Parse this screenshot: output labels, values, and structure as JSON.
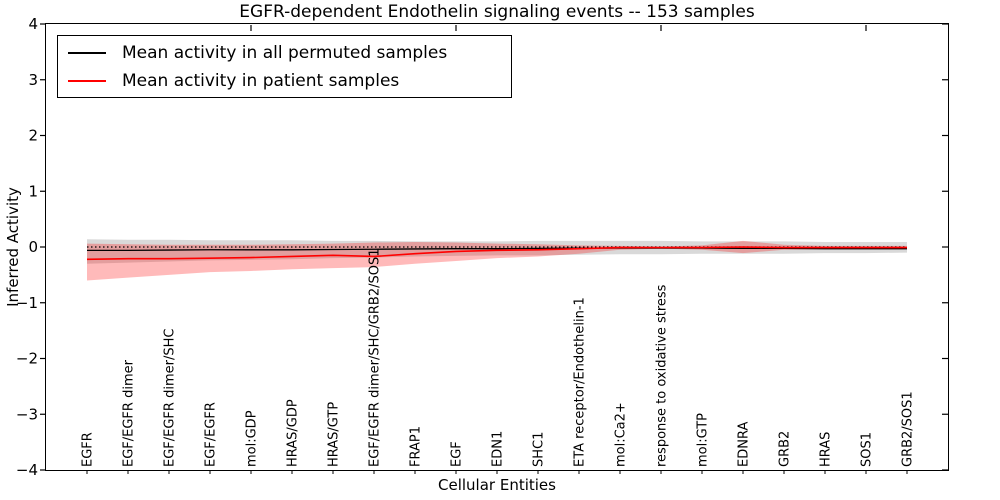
{
  "title": "EGFR-dependent Endothelin signaling events -- 153 samples",
  "axes": {
    "xlabel": "Cellular Entities",
    "ylabel": "Inferred Activity"
  },
  "legend": {
    "position": "upper left",
    "items": [
      {
        "label": "Mean activity in all permuted samples",
        "color": "#000000"
      },
      {
        "label": "Mean activity in patient samples",
        "color": "#ff0000"
      }
    ]
  },
  "colors": {
    "frame": "#000000",
    "permuted_line": "#000000",
    "patient_line": "#ff0000",
    "permuted_band": "rgba(0,0,0,0.15)",
    "patient_band": "rgba(255,0,0,0.27)",
    "zero_line": "#000000"
  },
  "chart_data": {
    "type": "line",
    "title": "EGFR-dependent Endothelin signaling events -- 153 samples",
    "xlabel": "Cellular Entities",
    "ylabel": "Inferred Activity",
    "xlim": [
      0,
      22
    ],
    "ylim": [
      -4,
      4
    ],
    "yticks": [
      4,
      3,
      2,
      1,
      0,
      -1,
      -2,
      -3,
      -4
    ],
    "xticks": [
      5,
      10,
      15,
      20
    ],
    "grid": false,
    "zero_line": {
      "y": 0,
      "style": "dotted"
    },
    "categories": [
      "EGFR",
      "EGF/EGFR dimer",
      "EGF/EGFR dimer/SHC",
      "EGF/EGFR",
      "mol:GDP",
      "HRAS/GDP",
      "HRAS/GTP",
      "EGF/EGFR dimer/SHC/GRB2/SOS1",
      "FRAP1",
      "EGF",
      "EDN1",
      "SHC1",
      "ETA receptor/Endothelin-1",
      "mol:Ca2+",
      "response to oxidative stress",
      "mol:GTP",
      "EDNRA",
      "GRB2",
      "HRAS",
      "SOS1",
      "GRB2/SOS1"
    ],
    "x": [
      1,
      2,
      3,
      4,
      5,
      6,
      7,
      8,
      9,
      10,
      11,
      12,
      13,
      14,
      15,
      16,
      17,
      18,
      19,
      20,
      21
    ],
    "series": [
      {
        "name": "Mean activity in all permuted samples",
        "color": "#000000",
        "line_width": 1.3,
        "values": [
          -0.06,
          -0.06,
          -0.055,
          -0.05,
          -0.05,
          -0.05,
          -0.045,
          -0.04,
          -0.035,
          -0.03,
          -0.03,
          -0.025,
          -0.02,
          -0.02,
          -0.02,
          -0.02,
          -0.025,
          -0.025,
          -0.03,
          -0.03,
          -0.03
        ],
        "band_upper": [
          0.14,
          0.13,
          0.13,
          0.12,
          0.12,
          0.12,
          0.11,
          0.11,
          0.1,
          0.1,
          0.1,
          0.11,
          0.11,
          0.11,
          0.11,
          0.1,
          0.1,
          0.1,
          0.09,
          0.09,
          0.09
        ],
        "band_lower": [
          -0.3,
          -0.28,
          -0.26,
          -0.24,
          -0.23,
          -0.22,
          -0.2,
          -0.19,
          -0.17,
          -0.16,
          -0.15,
          -0.15,
          -0.14,
          -0.13,
          -0.13,
          -0.12,
          -0.12,
          -0.12,
          -0.11,
          -0.11,
          -0.1
        ],
        "band_fill": "rgba(0,0,0,0.15)"
      },
      {
        "name": "Mean activity in patient samples",
        "color": "#ff0000",
        "line_width": 1.6,
        "values": [
          -0.22,
          -0.21,
          -0.21,
          -0.2,
          -0.19,
          -0.17,
          -0.15,
          -0.17,
          -0.12,
          -0.08,
          -0.06,
          -0.05,
          -0.03,
          -0.01,
          -0.01,
          -0.01,
          0.0,
          -0.01,
          -0.01,
          -0.01,
          -0.01
        ],
        "band_upper": [
          0.06,
          0.05,
          0.04,
          0.04,
          0.04,
          0.05,
          0.06,
          0.08,
          0.09,
          0.08,
          0.06,
          0.05,
          0.03,
          0.02,
          0.01,
          0.03,
          0.11,
          0.04,
          0.02,
          0.02,
          0.02
        ],
        "band_lower": [
          -0.6,
          -0.55,
          -0.5,
          -0.45,
          -0.43,
          -0.4,
          -0.38,
          -0.36,
          -0.3,
          -0.25,
          -0.2,
          -0.17,
          -0.12,
          -0.05,
          -0.03,
          -0.05,
          -0.11,
          -0.05,
          -0.04,
          -0.04,
          -0.04
        ],
        "band_fill": "rgba(255,0,0,0.27)"
      }
    ]
  }
}
